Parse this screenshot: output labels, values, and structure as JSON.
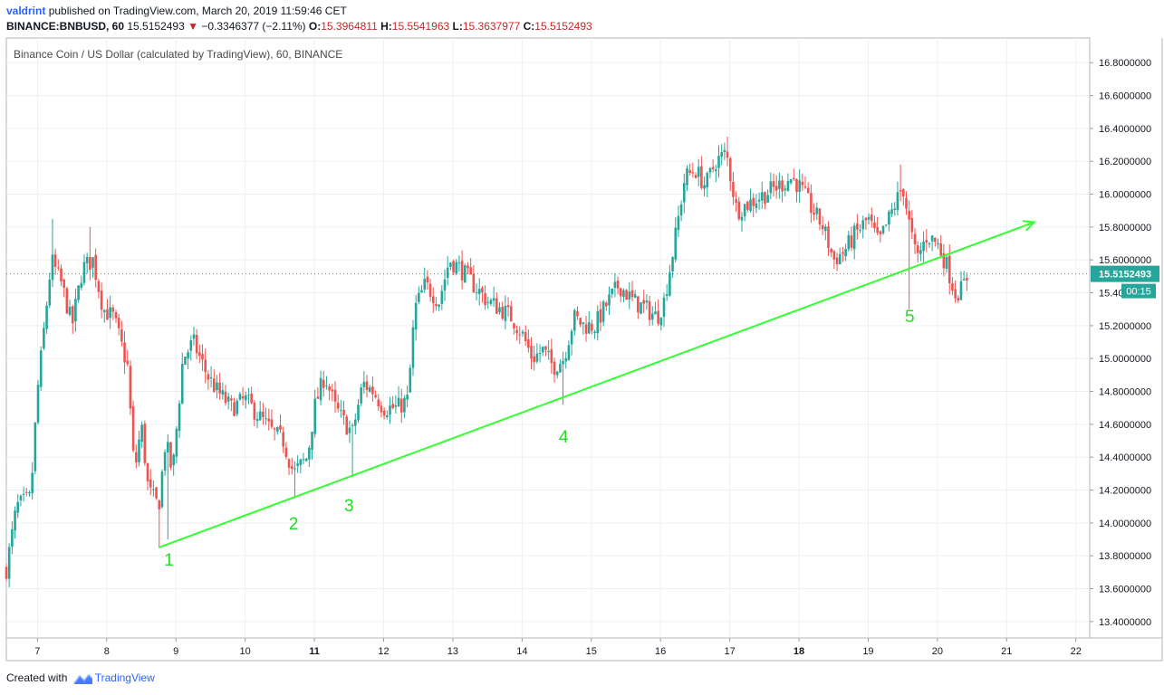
{
  "header": {
    "username": "valdrint",
    "published_text": "published on TradingView.com, March 20, 2019 11:59:46 CET",
    "symbol": "BINANCE:BNBUSD, 60",
    "last": "15.5152493",
    "change": "−0.3346377 (−2.11%)",
    "o_label": "O:",
    "o_value": "15.3964811",
    "h_label": "H:",
    "h_value": "15.5541963",
    "l_label": "L:",
    "l_value": "15.3637977",
    "c_label": "C:",
    "c_value": "15.5152493"
  },
  "footer": {
    "created_with": "Created with",
    "brand": "TradingView"
  },
  "colors": {
    "up": "#26a69a",
    "down": "#ef5350",
    "trendline": "#33ff33",
    "labels": "#22dd22",
    "price_badge": "#26a69a"
  },
  "chart_data": {
    "type": "candlestick",
    "title": "Binance Coin / US Dollar (calculated by TradingView), 60, BINANCE",
    "xlabel": "",
    "ylabel": "",
    "ylim": [
      13.3,
      16.95
    ],
    "xlim": [
      6.55,
      22.2
    ],
    "y_ticks": [
      "13.4000000",
      "13.6000000",
      "13.8000000",
      "14.0000000",
      "14.2000000",
      "14.4000000",
      "14.6000000",
      "14.8000000",
      "15.0000000",
      "15.2000000",
      "15.4000000",
      "15.6000000",
      "15.8000000",
      "16.0000000",
      "16.2000000",
      "16.4000000",
      "16.6000000",
      "16.8000000"
    ],
    "x_ticks": [
      "7",
      "8",
      "9",
      "10",
      "11",
      "12",
      "13",
      "14",
      "15",
      "16",
      "17",
      "18",
      "19",
      "20",
      "21",
      "22"
    ],
    "bold_x_ticks": [
      "11",
      "18"
    ],
    "grid": true,
    "current_price": "15.5152493",
    "countdown": "00:15",
    "close_path": [
      [
        6.55,
        13.72
      ],
      [
        6.7,
        14.1
      ],
      [
        6.9,
        14.15
      ],
      [
        7.0,
        14.8
      ],
      [
        7.1,
        15.2
      ],
      [
        7.2,
        15.6
      ],
      [
        7.35,
        15.45
      ],
      [
        7.5,
        15.2
      ],
      [
        7.65,
        15.55
      ],
      [
        7.8,
        15.6
      ],
      [
        7.95,
        15.3
      ],
      [
        8.1,
        15.25
      ],
      [
        8.3,
        14.95
      ],
      [
        8.4,
        14.3
      ],
      [
        8.5,
        14.6
      ],
      [
        8.6,
        14.2
      ],
      [
        8.75,
        14.1
      ],
      [
        8.85,
        14.5
      ],
      [
        8.95,
        14.3
      ],
      [
        9.1,
        15.0
      ],
      [
        9.25,
        15.1
      ],
      [
        9.45,
        14.9
      ],
      [
        9.6,
        14.8
      ],
      [
        9.8,
        14.7
      ],
      [
        10.0,
        14.75
      ],
      [
        10.2,
        14.65
      ],
      [
        10.4,
        14.55
      ],
      [
        10.55,
        14.5
      ],
      [
        10.7,
        14.3
      ],
      [
        10.8,
        14.35
      ],
      [
        10.9,
        14.4
      ],
      [
        11.0,
        14.7
      ],
      [
        11.15,
        14.9
      ],
      [
        11.3,
        14.7
      ],
      [
        11.45,
        14.6
      ],
      [
        11.55,
        14.55
      ],
      [
        11.7,
        14.85
      ],
      [
        11.85,
        14.8
      ],
      [
        12.0,
        14.7
      ],
      [
        12.2,
        14.7
      ],
      [
        12.35,
        14.75
      ],
      [
        12.45,
        15.3
      ],
      [
        12.6,
        15.45
      ],
      [
        12.8,
        15.35
      ],
      [
        12.95,
        15.6
      ],
      [
        13.1,
        15.55
      ],
      [
        13.3,
        15.45
      ],
      [
        13.5,
        15.35
      ],
      [
        13.7,
        15.3
      ],
      [
        13.85,
        15.25
      ],
      [
        14.0,
        15.15
      ],
      [
        14.15,
        15.0
      ],
      [
        14.3,
        15.05
      ],
      [
        14.45,
        14.95
      ],
      [
        14.6,
        15.0
      ],
      [
        14.75,
        15.25
      ],
      [
        14.9,
        15.2
      ],
      [
        15.05,
        15.2
      ],
      [
        15.25,
        15.35
      ],
      [
        15.4,
        15.45
      ],
      [
        15.6,
        15.35
      ],
      [
        15.8,
        15.3
      ],
      [
        15.95,
        15.25
      ],
      [
        16.05,
        15.35
      ],
      [
        16.2,
        15.7
      ],
      [
        16.35,
        16.1
      ],
      [
        16.5,
        16.15
      ],
      [
        16.65,
        16.05
      ],
      [
        16.8,
        16.2
      ],
      [
        16.95,
        16.25
      ],
      [
        17.1,
        15.9
      ],
      [
        17.3,
        15.95
      ],
      [
        17.5,
        16.0
      ],
      [
        17.7,
        16.05
      ],
      [
        17.9,
        16.1
      ],
      [
        18.0,
        16.05
      ],
      [
        18.2,
        15.9
      ],
      [
        18.35,
        15.8
      ],
      [
        18.5,
        15.6
      ],
      [
        18.65,
        15.65
      ],
      [
        18.8,
        15.75
      ],
      [
        19.0,
        15.85
      ],
      [
        19.15,
        15.7
      ],
      [
        19.35,
        15.9
      ],
      [
        19.5,
        16.05
      ],
      [
        19.6,
        15.8
      ],
      [
        19.7,
        15.6
      ],
      [
        19.85,
        15.75
      ],
      [
        20.0,
        15.7
      ],
      [
        20.15,
        15.55
      ],
      [
        20.25,
        15.4
      ],
      [
        20.35,
        15.42
      ],
      [
        20.45,
        15.52
      ]
    ],
    "wick_extremes": [
      {
        "x": 8.75,
        "low": 13.85
      },
      {
        "x": 8.9,
        "low": 13.9
      },
      {
        "x": 7.2,
        "high": 15.85
      },
      {
        "x": 7.75,
        "high": 15.8
      },
      {
        "x": 10.7,
        "low": 14.15
      },
      {
        "x": 11.55,
        "low": 14.28
      },
      {
        "x": 14.6,
        "low": 14.72
      },
      {
        "x": 16.95,
        "high": 16.35
      },
      {
        "x": 19.6,
        "low": 15.3
      },
      {
        "x": 19.45,
        "high": 16.18
      }
    ],
    "trendline": {
      "from": [
        8.75,
        13.85
      ],
      "to": [
        21.4,
        15.83
      ],
      "arrow": true
    },
    "annotations": [
      {
        "text": "1",
        "x": 8.9,
        "y": 13.74
      },
      {
        "text": "2",
        "x": 10.7,
        "y": 13.96
      },
      {
        "text": "3",
        "x": 11.5,
        "y": 14.07
      },
      {
        "text": "4",
        "x": 14.6,
        "y": 14.49
      },
      {
        "text": "5",
        "x": 19.6,
        "y": 15.22
      }
    ]
  }
}
